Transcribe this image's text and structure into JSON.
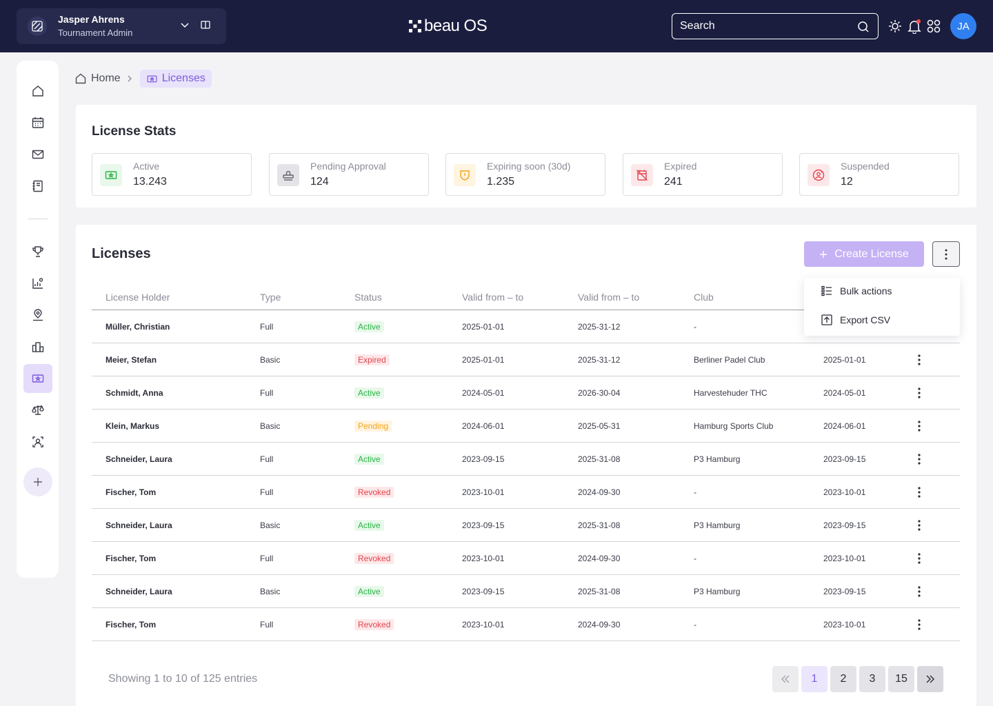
{
  "user": {
    "name": "Jasper Ahrens",
    "role": "Tournament Admin",
    "initials": "JA"
  },
  "brand": {
    "logo_text": "beau OS",
    "accent": "#7d5bdc",
    "navbar_bg": "#1b1d3f"
  },
  "search": {
    "placeholder": "Search"
  },
  "breadcrumb": {
    "home": "Home",
    "current": "Licenses"
  },
  "stats": {
    "title": "License Stats",
    "items": [
      {
        "label": "Active",
        "value": "13.243",
        "icon": "ticket-icon",
        "color": "#28b446"
      },
      {
        "label": "Pending Approval",
        "value": "124",
        "icon": "stamp-icon",
        "color": "#5e606b"
      },
      {
        "label": "Expiring soon (30d)",
        "value": "1.235",
        "icon": "shield-alert-icon",
        "color": "#f2a31a"
      },
      {
        "label": "Expired",
        "value": "241",
        "icon": "crossed-calendar-icon",
        "color": "#e3444e"
      },
      {
        "label": "Suspended",
        "value": "12",
        "icon": "blocked-user-icon",
        "color": "#e3444e"
      }
    ]
  },
  "licenses": {
    "title": "Licenses",
    "create_label": "Create License",
    "menu": {
      "bulk": "Bulk actions",
      "export": "Export CSV"
    },
    "columns": [
      "License Holder",
      "Type",
      "Status",
      "Valid from – to",
      "Valid from – to",
      "Club"
    ],
    "rows": [
      {
        "holder": "Müller, Christian",
        "type": "Full",
        "status": "Active",
        "from": "2025-01-01",
        "to": "2025-31-12",
        "club": "-",
        "date": ""
      },
      {
        "holder": "Meier, Stefan",
        "type": "Basic",
        "status": "Expired",
        "from": "2025-01-01",
        "to": "2025-31-12",
        "club": "Berliner Padel Club",
        "date": "2025-01-01"
      },
      {
        "holder": "Schmidt, Anna",
        "type": "Full",
        "status": "Active",
        "from": "2024-05-01",
        "to": "2026-30-04",
        "club": "Harvestehuder THC",
        "date": "2024-05-01"
      },
      {
        "holder": "Klein, Markus",
        "type": "Basic",
        "status": "Pending",
        "from": "2024-06-01",
        "to": "2025-05-31",
        "club": "Hamburg Sports Club",
        "date": "2024-06-01"
      },
      {
        "holder": "Schneider, Laura",
        "type": "Full",
        "status": "Active",
        "from": "2023-09-15",
        "to": "2025-31-08",
        "club": "P3 Hamburg",
        "date": "2023-09-15"
      },
      {
        "holder": "Fischer, Tom",
        "type": "Full",
        "status": "Revoked",
        "from": "2023-10-01",
        "to": "2024-09-30",
        "club": "-",
        "date": "2023-10-01"
      },
      {
        "holder": "Schneider, Laura",
        "type": "Basic",
        "status": "Active",
        "from": "2023-09-15",
        "to": "2025-31-08",
        "club": "P3 Hamburg",
        "date": "2023-09-15"
      },
      {
        "holder": "Fischer, Tom",
        "type": "Full",
        "status": "Revoked",
        "from": "2023-10-01",
        "to": "2024-09-30",
        "club": "-",
        "date": "2023-10-01"
      },
      {
        "holder": "Schneider, Laura",
        "type": "Basic",
        "status": "Active",
        "from": "2023-09-15",
        "to": "2025-31-08",
        "club": "P3 Hamburg",
        "date": "2023-09-15"
      },
      {
        "holder": "Fischer, Tom",
        "type": "Full",
        "status": "Revoked",
        "from": "2023-10-01",
        "to": "2024-09-30",
        "club": "-",
        "date": "2023-10-01"
      }
    ]
  },
  "pagination": {
    "summary": "Showing 1 to 10 of 125 entries",
    "first": "«",
    "pages": [
      "1",
      "2",
      "3",
      "15"
    ],
    "current": "1",
    "last": "»"
  }
}
